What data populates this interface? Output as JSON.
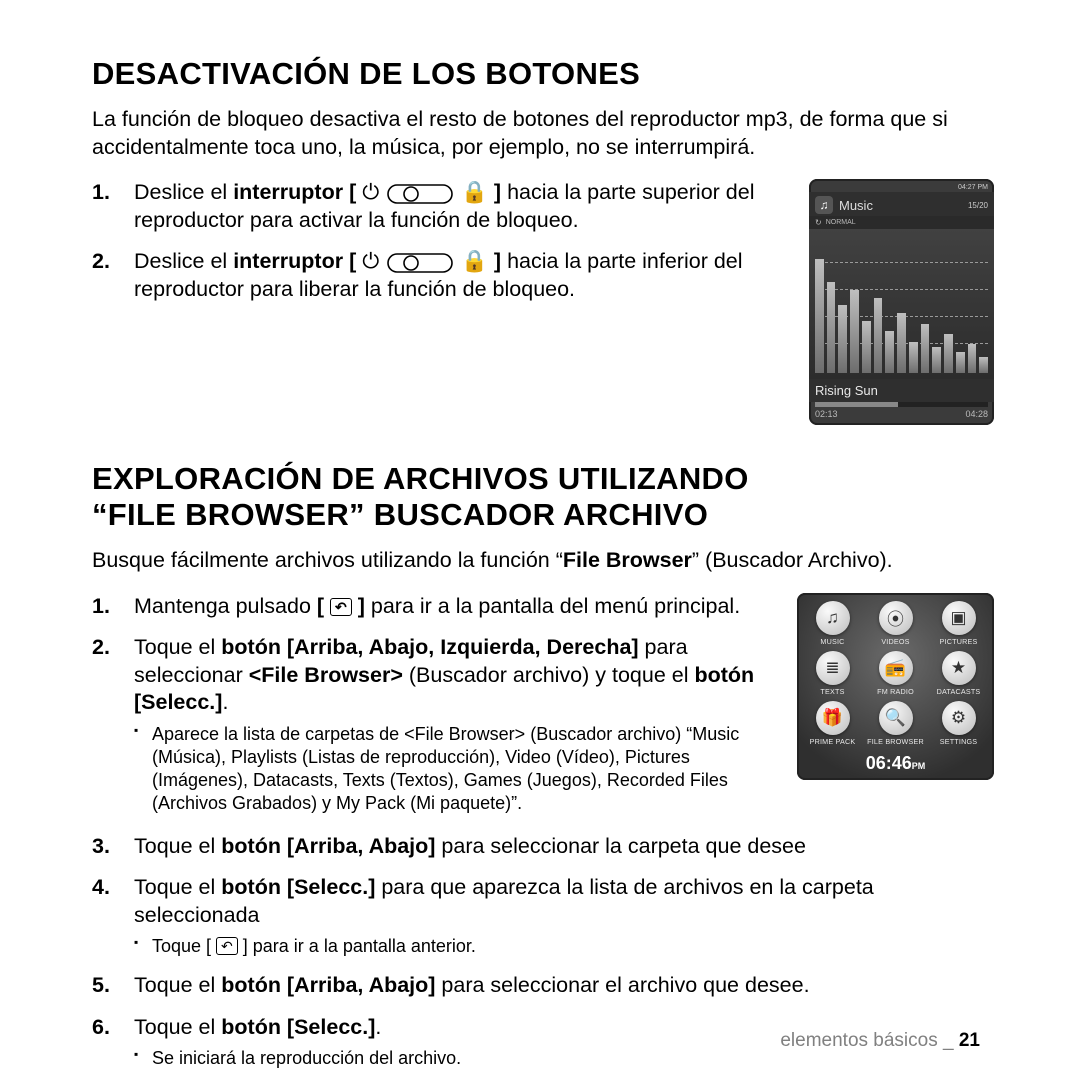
{
  "section1": {
    "title": "DESACTIVACIÓN DE LOS BOTONES",
    "intro": "La función de bloqueo desactiva el resto de botones del reproductor mp3, de forma que si accidentalmente toca uno, la música, por ejemplo,  no se interrumpirá.",
    "step1_a": "Deslice el ",
    "step1_b": "interruptor",
    "step1_c": " hacia la parte superior del reproductor para activar la función de bloqueo.",
    "step2_a": "Deslice el ",
    "step2_b": "interruptor",
    "step2_c": " hacia la parte inferior del reproductor para liberar la función de bloqueo."
  },
  "player": {
    "clock": "04:27 PM",
    "title": "Music",
    "count": "15/20",
    "mode": "NORMAL",
    "song": "Rising Sun",
    "elapsed": "02:13",
    "total": "04:28",
    "eq_heights": [
      88,
      70,
      52,
      64,
      40,
      58,
      32,
      46,
      24,
      38,
      20,
      30,
      16,
      22,
      12
    ],
    "colors": {
      "bg": "#3b3b3b",
      "bar": "#888888",
      "text": "#e8e8e8"
    }
  },
  "section2": {
    "title_l1": "EXPLORACIÓN DE ARCHIVOS UTILIZANDO",
    "title_l2": "“FILE BROWSER” BUSCADOR ARCHIVO",
    "intro_a": "Busque fácilmente archivos utilizando la función “",
    "intro_b": "File Browser",
    "intro_c": "” (Buscador Archivo).",
    "s1_a": "Mantenga pulsado ",
    "s1_b": " para ir a la pantalla del menú principal.",
    "s2_a": "Toque el ",
    "s2_b": "botón [Arriba, Abajo, Izquierda, Derecha]",
    "s2_c": " para seleccionar ",
    "s2_d": "<File Browser>",
    "s2_e": " (Buscador archivo) y toque el ",
    "s2_f": "botón [Selecc.]",
    "s2_g": ".",
    "s2_sub": "Aparece la lista de carpetas de <File Browser> (Buscador archivo) “Music (Música), Playlists (Listas de reproducción), Video (Vídeo), Pictures (Imágenes), Datacasts, Texts (Textos), Games (Juegos), Recorded Files (Archivos Grabados) y My Pack (Mi paquete)”.",
    "s3_a": "Toque el ",
    "s3_b": "botón [Arriba, Abajo]",
    "s3_c": " para seleccionar la carpeta que desee",
    "s4_a": "Toque el ",
    "s4_b": "botón [Selecc.]",
    "s4_c": " para que aparezca la lista de archivos en la carpeta seleccionada",
    "s4_sub_a": "Toque [ ",
    "s4_sub_b": " ] para ir a la pantalla anterior.",
    "s5_a": "Toque el ",
    "s5_b": "botón [Arriba, Abajo]",
    "s5_c": " para seleccionar el archivo que desee.",
    "s6_a": "Toque el ",
    "s6_b": "botón [Selecc.]",
    "s6_c": ".",
    "s6_sub": "Se iniciará la reproducción del archivo."
  },
  "menu": {
    "items": [
      {
        "label": "MUSIC",
        "glyph": "♫"
      },
      {
        "label": "VIDEOS",
        "glyph": "⦿"
      },
      {
        "label": "PICTURES",
        "glyph": "▣"
      },
      {
        "label": "TEXTS",
        "glyph": "≣"
      },
      {
        "label": "FM RADIO",
        "glyph": "📻"
      },
      {
        "label": "DATACASTS",
        "glyph": "★"
      },
      {
        "label": "PRIME PACK",
        "glyph": "🎁"
      },
      {
        "label": "FILE BROWSER",
        "glyph": "🔍"
      },
      {
        "label": "SETTINGS",
        "glyph": "⚙"
      }
    ],
    "clock": "06:46",
    "ampm": "PM"
  },
  "footer": {
    "label": "elementos básicos _",
    "page": "21"
  }
}
